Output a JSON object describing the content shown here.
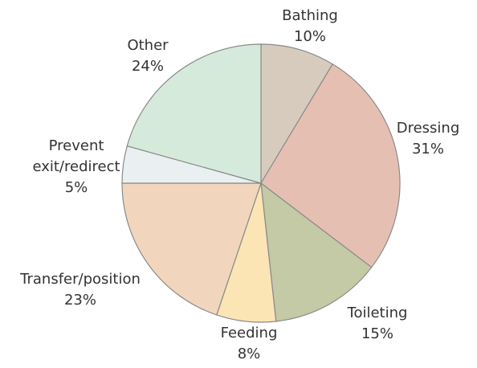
{
  "chart_data": {
    "type": "pie",
    "categories": [
      "Bathing",
      "Dressing",
      "Toileting",
      "Feeding",
      "Transfer/position",
      "Prevent exit/redirect",
      "Other"
    ],
    "values": [
      10,
      31,
      15,
      8,
      23,
      5,
      24
    ],
    "value_labels": [
      "10%",
      "31%",
      "15%",
      "8%",
      "23%",
      "5%",
      "24%"
    ],
    "colors": [
      "#d6cbbd",
      "#e6bfb3",
      "#c4c9a6",
      "#fbe5b5",
      "#f1d6bd",
      "#eaeff1",
      "#d6eadc"
    ]
  }
}
